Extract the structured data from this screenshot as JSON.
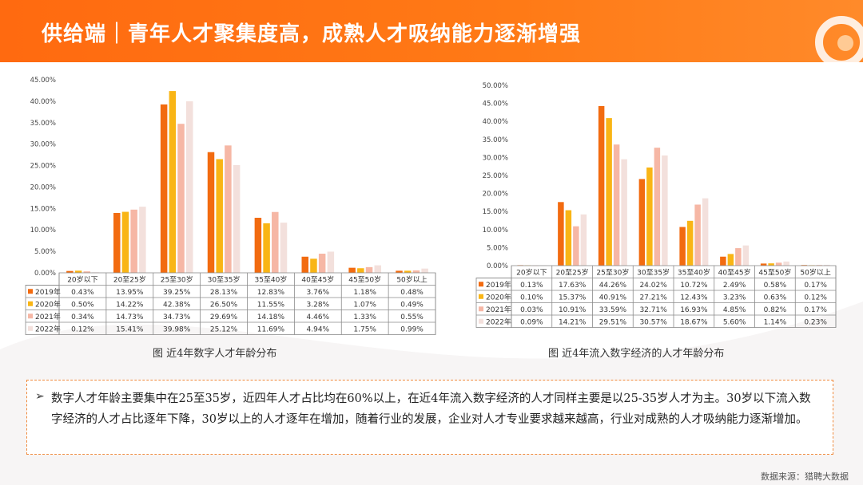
{
  "header": {
    "title": "供给端｜青年人才聚集度高，成熟人才吸纳能力逐渐增强"
  },
  "chart_data": [
    {
      "type": "bar",
      "caption": "图 近4年数字人才年龄分布",
      "categories": [
        "20岁以下",
        "20至25岁",
        "25至30岁",
        "30至35岁",
        "35至40岁",
        "40至45岁",
        "45至50岁",
        "50岁以上"
      ],
      "series": [
        {
          "name": "2019年",
          "color": "#f26b10",
          "values": [
            0.43,
            13.95,
            39.25,
            28.13,
            12.83,
            3.76,
            1.18,
            0.48
          ],
          "labels": [
            "0.43%",
            "13.95%",
            "39.25%",
            "28.13%",
            "12.83%",
            "3.76%",
            "1.18%",
            "0.48%"
          ]
        },
        {
          "name": "2020年",
          "color": "#f9b515",
          "values": [
            0.5,
            14.22,
            42.38,
            26.5,
            11.55,
            3.28,
            1.07,
            0.49
          ],
          "labels": [
            "0.50%",
            "14.22%",
            "42.38%",
            "26.50%",
            "11.55%",
            "3.28%",
            "1.07%",
            "0.49%"
          ]
        },
        {
          "name": "2021年",
          "color": "#f6b7a5",
          "values": [
            0.34,
            14.73,
            34.73,
            29.69,
            14.18,
            4.46,
            1.33,
            0.55
          ],
          "labels": [
            "0.34%",
            "14.73%",
            "34.73%",
            "29.69%",
            "14.18%",
            "4.46%",
            "1.33%",
            "0.55%"
          ]
        },
        {
          "name": "2022年",
          "color": "#f3e0dc",
          "values": [
            0.12,
            15.41,
            39.98,
            25.12,
            11.69,
            4.94,
            1.75,
            0.99
          ],
          "labels": [
            "0.12%",
            "15.41%",
            "39.98%",
            "25.12%",
            "11.69%",
            "4.94%",
            "1.75%",
            "0.99%"
          ]
        }
      ],
      "yticks": [
        "0.00%",
        "5.00%",
        "10.00%",
        "15.00%",
        "20.00%",
        "25.00%",
        "30.00%",
        "35.00%",
        "40.00%",
        "45.00%"
      ],
      "ylim": [
        0,
        45
      ]
    },
    {
      "type": "bar",
      "caption": "图 近4年流入数字经济的人才年龄分布",
      "categories": [
        "20岁以下",
        "20至25岁",
        "25至30岁",
        "30至35岁",
        "35至40岁",
        "40至45岁",
        "45至50岁",
        "50岁以上"
      ],
      "series": [
        {
          "name": "2019年",
          "color": "#f26b10",
          "values": [
            0.13,
            17.63,
            44.26,
            24.02,
            10.72,
            2.49,
            0.58,
            0.17
          ],
          "labels": [
            "0.13%",
            "17.63%",
            "44.26%",
            "24.02%",
            "10.72%",
            "2.49%",
            "0.58%",
            "0.17%"
          ]
        },
        {
          "name": "2020年",
          "color": "#f9b515",
          "values": [
            0.1,
            15.37,
            40.91,
            27.21,
            12.43,
            3.23,
            0.63,
            0.12
          ],
          "labels": [
            "0.10%",
            "15.37%",
            "40.91%",
            "27.21%",
            "12.43%",
            "3.23%",
            "0.63%",
            "0.12%"
          ]
        },
        {
          "name": "2021年",
          "color": "#f6b7a5",
          "values": [
            0.03,
            10.91,
            33.59,
            32.71,
            16.93,
            4.85,
            0.82,
            0.17
          ],
          "labels": [
            "0.03%",
            "10.91%",
            "33.59%",
            "32.71%",
            "16.93%",
            "4.85%",
            "0.82%",
            "0.17%"
          ]
        },
        {
          "name": "2022年",
          "color": "#f3e0dc",
          "values": [
            0.09,
            14.21,
            29.51,
            30.57,
            18.67,
            5.6,
            1.14,
            0.23
          ],
          "labels": [
            "0.09%",
            "14.21%",
            "29.51%",
            "30.57%",
            "18.67%",
            "5.60%",
            "1.14%",
            "0.23%"
          ]
        }
      ],
      "yticks": [
        "0.00%",
        "5.00%",
        "10.00%",
        "15.00%",
        "20.00%",
        "25.00%",
        "30.00%",
        "35.00%",
        "40.00%",
        "45.00%",
        "50.00%"
      ],
      "ylim": [
        0,
        50
      ]
    }
  ],
  "summary": {
    "bullet": "➢",
    "text": "数字人才年龄主要集中在25至35岁，近四年人才占比均在60%以上，在近4年流入数字经济的人才同样主要是以25-35岁人才为主。30岁以下流入数字经济的人才占比逐年下降，30岁以上的人才逐年在增加，随着行业的发展，企业对人才专业要求越来越高，行业对成熟的人才吸纳能力逐渐增加。"
  },
  "source": "数据来源：猎聘大数据"
}
